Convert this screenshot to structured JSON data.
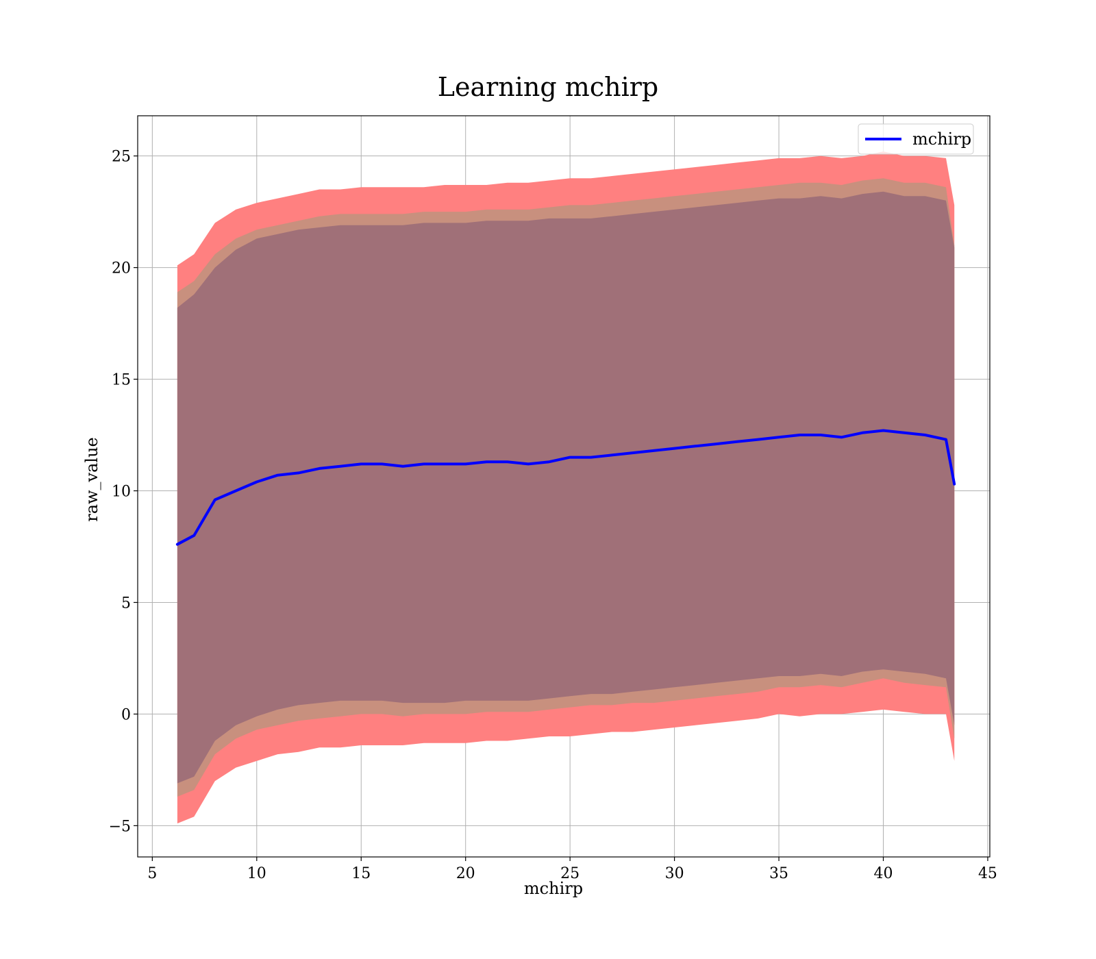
{
  "chart_data": {
    "type": "line",
    "title": "Learning mchirp",
    "xlabel": "mchirp",
    "ylabel": "raw_value",
    "xlim": [
      4.3,
      45.1
    ],
    "ylim": [
      -6.4,
      26.8
    ],
    "xticks": [
      5,
      10,
      15,
      20,
      25,
      30,
      35,
      40,
      45
    ],
    "yticks": [
      -5,
      0,
      5,
      10,
      15,
      20,
      25
    ],
    "ytick_labels": [
      "−5",
      "0",
      "5",
      "10",
      "15",
      "20",
      "25"
    ],
    "grid": true,
    "legend": {
      "position": "top-right",
      "entries": [
        "mchirp"
      ]
    },
    "x": [
      6.2,
      7.0,
      8.0,
      9.0,
      10.0,
      11.0,
      12.0,
      13.0,
      14.0,
      15.0,
      16.0,
      17.0,
      18.0,
      19.0,
      20.0,
      21.0,
      22.0,
      23.0,
      24.0,
      25.0,
      26.0,
      27.0,
      28.0,
      29.0,
      30.0,
      31.0,
      32.0,
      33.0,
      34.0,
      35.0,
      36.0,
      37.0,
      38.0,
      39.0,
      40.0,
      41.0,
      42.0,
      43.0,
      43.4
    ],
    "series": [
      {
        "name": "mchirp",
        "role": "mean",
        "color": "#0000ff",
        "values": [
          7.6,
          8.0,
          9.6,
          10.0,
          10.4,
          10.7,
          10.8,
          11.0,
          11.1,
          11.2,
          11.2,
          11.1,
          11.2,
          11.2,
          11.2,
          11.3,
          11.3,
          11.2,
          11.3,
          11.5,
          11.5,
          11.6,
          11.7,
          11.8,
          11.9,
          12.0,
          12.1,
          12.2,
          12.3,
          12.4,
          12.5,
          12.5,
          12.4,
          12.6,
          12.7,
          12.6,
          12.5,
          12.3,
          10.3
        ]
      }
    ],
    "bands": [
      {
        "role": "outer",
        "color": "#ff8080",
        "upper": [
          20.1,
          20.6,
          22.0,
          22.6,
          22.9,
          23.1,
          23.3,
          23.5,
          23.5,
          23.6,
          23.6,
          23.6,
          23.6,
          23.7,
          23.7,
          23.7,
          23.8,
          23.8,
          23.9,
          24.0,
          24.0,
          24.1,
          24.2,
          24.3,
          24.4,
          24.5,
          24.6,
          24.7,
          24.8,
          24.9,
          24.9,
          25.0,
          24.9,
          25.0,
          25.2,
          25.0,
          25.0,
          24.9,
          22.8
        ],
        "lower": [
          -4.9,
          -4.6,
          -3.0,
          -2.4,
          -2.1,
          -1.8,
          -1.7,
          -1.5,
          -1.5,
          -1.4,
          -1.4,
          -1.4,
          -1.3,
          -1.3,
          -1.3,
          -1.2,
          -1.2,
          -1.1,
          -1.0,
          -1.0,
          -0.9,
          -0.8,
          -0.8,
          -0.7,
          -0.6,
          -0.5,
          -0.4,
          -0.3,
          -0.2,
          0.0,
          -0.1,
          0.0,
          0.0,
          0.1,
          0.2,
          0.1,
          0.0,
          0.0,
          -2.1
        ]
      },
      {
        "role": "middle",
        "color": "#c8907e",
        "upper": [
          18.9,
          19.4,
          20.6,
          21.3,
          21.7,
          21.9,
          22.1,
          22.3,
          22.4,
          22.4,
          22.4,
          22.4,
          22.5,
          22.5,
          22.5,
          22.6,
          22.6,
          22.6,
          22.7,
          22.8,
          22.8,
          22.9,
          23.0,
          23.1,
          23.2,
          23.3,
          23.4,
          23.5,
          23.6,
          23.7,
          23.8,
          23.8,
          23.7,
          23.9,
          24.0,
          23.8,
          23.8,
          23.6,
          21.0
        ],
        "lower": [
          -3.7,
          -3.4,
          -1.8,
          -1.1,
          -0.7,
          -0.5,
          -0.3,
          -0.2,
          -0.1,
          0.0,
          0.0,
          -0.1,
          0.0,
          0.0,
          0.0,
          0.1,
          0.1,
          0.1,
          0.2,
          0.3,
          0.4,
          0.4,
          0.5,
          0.5,
          0.6,
          0.7,
          0.8,
          0.9,
          1.0,
          1.2,
          1.2,
          1.3,
          1.2,
          1.4,
          1.6,
          1.4,
          1.3,
          1.2,
          -1.1
        ]
      },
      {
        "role": "inner",
        "color": "#a07078",
        "upper": [
          18.2,
          18.8,
          20.0,
          20.8,
          21.3,
          21.5,
          21.7,
          21.8,
          21.9,
          21.9,
          21.9,
          21.9,
          22.0,
          22.0,
          22.0,
          22.1,
          22.1,
          22.1,
          22.2,
          22.2,
          22.2,
          22.3,
          22.4,
          22.5,
          22.6,
          22.7,
          22.8,
          22.9,
          23.0,
          23.1,
          23.1,
          23.2,
          23.1,
          23.3,
          23.4,
          23.2,
          23.2,
          23.0,
          20.9
        ],
        "lower": [
          -3.1,
          -2.8,
          -1.2,
          -0.5,
          -0.1,
          0.2,
          0.4,
          0.5,
          0.6,
          0.6,
          0.6,
          0.5,
          0.5,
          0.5,
          0.6,
          0.6,
          0.6,
          0.6,
          0.7,
          0.8,
          0.9,
          0.9,
          1.0,
          1.1,
          1.2,
          1.3,
          1.4,
          1.5,
          1.6,
          1.7,
          1.7,
          1.8,
          1.7,
          1.9,
          2.0,
          1.9,
          1.8,
          1.6,
          -0.5
        ]
      }
    ]
  }
}
